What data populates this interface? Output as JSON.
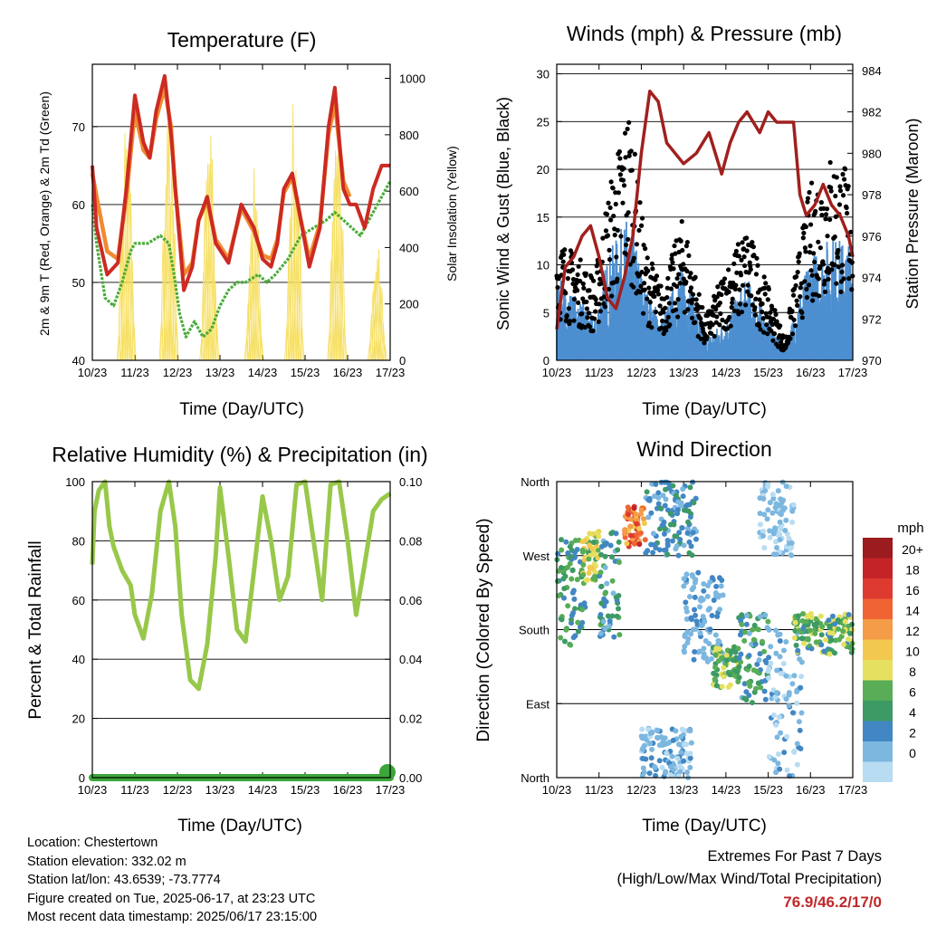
{
  "colors": {
    "temp_2m": "#cc2a22",
    "temp_9m": "#f08a30",
    "dewpoint": "#4aab3a",
    "solar": "#f6df60",
    "wind": "#4d8fd0",
    "gust": "#000000",
    "pressure": "#a0201e",
    "rh": "#98c84a",
    "precip": "#3ca63a",
    "grid": "#000000",
    "extreme_values": "#c0282a"
  },
  "chart_data": [
    {
      "id": "temperature",
      "type": "line",
      "title": "Temperature (F)",
      "xlabel": "Time (Day/UTC)",
      "ylabel": "2m & 9m T (Red, Orange) & 2m Td (Green)",
      "y2label": "Solar Insolation (Yellow)",
      "xlim": [
        10,
        17
      ],
      "ylim": [
        40,
        78
      ],
      "y2lim": [
        0,
        1050
      ],
      "xticks": [
        "10/23",
        "11/23",
        "12/23",
        "13/23",
        "14/23",
        "15/23",
        "16/23",
        "17/23"
      ],
      "yticks": [
        40,
        50,
        60,
        70
      ],
      "y2ticks": [
        0,
        200,
        400,
        600,
        800,
        1000
      ],
      "grid": true,
      "series": [
        {
          "key": "temp_2m",
          "x": [
            10,
            10.1,
            10.35,
            10.6,
            10.8,
            11,
            11.2,
            11.35,
            11.5,
            11.7,
            11.85,
            11.95,
            12.15,
            12.35,
            12.5,
            12.7,
            12.9,
            13.2,
            13.5,
            13.8,
            14.0,
            14.2,
            14.35,
            14.5,
            14.7,
            14.9,
            15.1,
            15.35,
            15.55,
            15.7,
            15.9,
            16.05,
            16.2,
            16.4,
            16.6,
            16.8,
            17.0
          ],
          "y": [
            65,
            57,
            51,
            52.5,
            62,
            74,
            68,
            66,
            72,
            76.5,
            69,
            62,
            49,
            52,
            58,
            61,
            55,
            52.5,
            60,
            57,
            53,
            52,
            55,
            62,
            64,
            58,
            52,
            57,
            70,
            75,
            62,
            60,
            60,
            57,
            62,
            65,
            65
          ]
        },
        {
          "key": "temp_9m",
          "x": [
            10,
            10.1,
            10.35,
            10.6,
            10.8,
            11,
            11.2,
            11.35,
            11.5,
            11.7,
            11.85,
            11.95,
            12.15,
            12.35,
            12.5,
            12.7,
            12.9,
            13.2,
            13.5,
            13.8,
            14.0,
            14.2,
            14.35,
            14.5,
            14.7,
            14.9,
            15.1,
            15.35,
            15.55,
            15.7,
            15.9,
            16.05
          ],
          "y": [
            64,
            61,
            54,
            53,
            61,
            72,
            67,
            66,
            71,
            75,
            70,
            62,
            51,
            52.5,
            58,
            60.5,
            55.5,
            53,
            59.5,
            56.5,
            53.5,
            53,
            55.5,
            61.5,
            63.5,
            58,
            53,
            57.5,
            69,
            73,
            63,
            61
          ]
        },
        {
          "key": "dewpoint",
          "x": [
            10,
            10.1,
            10.3,
            10.5,
            10.7,
            10.9,
            11,
            11.3,
            11.6,
            11.8,
            11.95,
            12.05,
            12.2,
            12.4,
            12.6,
            12.8,
            13.0,
            13.2,
            13.4,
            13.6,
            13.9,
            14.1,
            14.3,
            14.6,
            14.9,
            15.2,
            15.5,
            15.7,
            15.9,
            16.1,
            16.3,
            16.5,
            16.8,
            17.0
          ],
          "y": [
            60,
            55,
            48,
            47,
            50,
            54,
            55,
            55,
            56,
            55,
            50,
            46,
            43,
            45,
            43,
            44,
            47,
            49,
            50,
            50,
            51,
            50,
            51,
            53,
            56,
            57,
            58,
            59,
            58,
            57,
            56,
            58,
            61,
            63
          ]
        },
        {
          "key": "solar",
          "peaks": [
            [
              10.8,
              950
            ],
            [
              11.8,
              1000
            ],
            [
              12.75,
              860
            ],
            [
              13.8,
              700
            ],
            [
              14.75,
              980
            ],
            [
              15.75,
              1040
            ],
            [
              16.7,
              420
            ]
          ]
        }
      ]
    },
    {
      "id": "winds",
      "type": "line",
      "title": "Winds (mph) & Pressure (mb)",
      "xlabel": "Time (Day/UTC)",
      "ylabel": "Sonic Wind & Gust (Blue, Black)",
      "y2label": "Station Pressure (Maroon)",
      "xlim": [
        10,
        17
      ],
      "ylim": [
        0,
        31
      ],
      "y2lim": [
        970,
        984.3
      ],
      "xticks": [
        "10/23",
        "11/23",
        "12/23",
        "13/23",
        "14/23",
        "15/23",
        "16/23",
        "17/23"
      ],
      "yticks": [
        0,
        5,
        10,
        15,
        20,
        25,
        30
      ],
      "y2ticks": [
        970,
        972,
        974,
        976,
        978,
        980,
        982,
        984
      ],
      "grid": true,
      "series": [
        {
          "key": "pressure",
          "x": [
            10,
            10.2,
            10.4,
            10.6,
            10.8,
            11,
            11.2,
            11.4,
            11.6,
            11.8,
            12,
            12.2,
            12.4,
            12.6,
            12.8,
            13.0,
            13.3,
            13.6,
            13.9,
            14.1,
            14.3,
            14.5,
            14.8,
            15.0,
            15.2,
            15.4,
            15.6,
            15.75,
            15.9,
            16.1,
            16.3,
            16.5,
            16.7,
            16.9,
            17.0
          ],
          "y": [
            971.5,
            974.5,
            975,
            976,
            976.5,
            975,
            973,
            972.5,
            974,
            976,
            980,
            983,
            982.5,
            980.5,
            980,
            979.5,
            980,
            981,
            979,
            980.5,
            981.5,
            982,
            981,
            982,
            981.5,
            981.5,
            981.5,
            978,
            977,
            977.5,
            978.5,
            977.5,
            977,
            976,
            975
          ]
        },
        {
          "key": "wind",
          "envelope_x": [
            10,
            10.5,
            10.9,
            11.2,
            11.7,
            12.1,
            12.5,
            13.0,
            13.5,
            14.0,
            14.5,
            15.0,
            15.4,
            15.7,
            16.0,
            16.5,
            17.0
          ],
          "envelope_y": [
            8,
            6,
            4,
            10,
            14,
            7,
            4,
            10,
            2,
            4,
            8,
            4,
            1,
            6,
            10,
            12,
            11
          ]
        },
        {
          "key": "gust",
          "envelope_x": [
            10,
            10.5,
            10.9,
            11.2,
            11.7,
            12.1,
            12.5,
            13.0,
            13.5,
            14.0,
            14.5,
            15.0,
            15.4,
            15.7,
            16.0,
            16.5,
            17.0
          ],
          "envelope_y": [
            12,
            10,
            8,
            16,
            25,
            11,
            7,
            14,
            4,
            9,
            13,
            7,
            2,
            10,
            17,
            20,
            18
          ]
        }
      ]
    },
    {
      "id": "humidity",
      "type": "line",
      "title": "Relative Humidity (%) & Precipitation (in)",
      "xlabel": "Time (Day/UTC)",
      "ylabel": "Percent & Total Rainfall",
      "xlim": [
        10,
        17
      ],
      "ylim": [
        0,
        100
      ],
      "y2lim": [
        0,
        0.1
      ],
      "xticks": [
        "10/23",
        "11/23",
        "12/23",
        "13/23",
        "14/23",
        "15/23",
        "16/23",
        "17/23"
      ],
      "yticks": [
        0,
        20,
        40,
        60,
        80,
        100
      ],
      "y2ticks": [
        "0.00",
        "0.02",
        "0.04",
        "0.06",
        "0.08",
        "0.10"
      ],
      "grid": true,
      "series": [
        {
          "key": "rh",
          "x": [
            10,
            10.05,
            10.15,
            10.3,
            10.4,
            10.5,
            10.7,
            10.9,
            11.0,
            11.2,
            11.4,
            11.6,
            11.8,
            11.95,
            12.1,
            12.3,
            12.5,
            12.7,
            12.9,
            13.0,
            13.2,
            13.4,
            13.6,
            13.8,
            14.0,
            14.2,
            14.4,
            14.6,
            14.8,
            15.0,
            15.2,
            15.4,
            15.6,
            15.8,
            16.0,
            16.2,
            16.4,
            16.6,
            16.8,
            17.0
          ],
          "y": [
            72,
            90,
            97,
            100,
            85,
            78,
            70,
            65,
            55,
            47,
            62,
            90,
            100,
            85,
            55,
            33,
            30,
            45,
            75,
            98,
            75,
            50,
            46,
            70,
            95,
            80,
            60,
            68,
            99,
            100,
            80,
            60,
            99,
            100,
            80,
            55,
            72,
            90,
            94,
            96
          ]
        },
        {
          "key": "precip",
          "x": [
            10,
            17
          ],
          "y": [
            0,
            0
          ]
        }
      ]
    },
    {
      "id": "direction",
      "type": "scatter",
      "title": "Wind Direction",
      "xlabel": "Time (Day/UTC)",
      "ylabel": "Direction (Colored By Speed)",
      "xlim": [
        10,
        17
      ],
      "ylim": [
        0,
        360
      ],
      "xticks": [
        "10/23",
        "11/23",
        "12/23",
        "13/23",
        "14/23",
        "15/23",
        "16/23",
        "17/23"
      ],
      "yticks": [
        "North",
        "East",
        "South",
        "West",
        "North"
      ],
      "grid": true,
      "legend": {
        "title": "mph",
        "labels": [
          "20+",
          "18",
          "16",
          "14",
          "12",
          "10",
          "8",
          "6",
          "4",
          "2",
          "0"
        ],
        "colors": [
          "#9b1b1e",
          "#c42428",
          "#de3a2f",
          "#f06433",
          "#f49c47",
          "#f2c94e",
          "#e6e060",
          "#58ad56",
          "#3d9a64",
          "#4287c4",
          "#7cb7e0",
          "#b8dcf2"
        ]
      },
      "clusters": [
        {
          "x": [
            10,
            10.7
          ],
          "y": [
            160,
            290
          ],
          "speed": [
            3,
            8
          ]
        },
        {
          "x": [
            10.6,
            11.0
          ],
          "y": [
            240,
            300
          ],
          "speed": [
            6,
            13
          ]
        },
        {
          "x": [
            11.0,
            11.5
          ],
          "y": [
            170,
            300
          ],
          "speed": [
            2,
            8
          ]
        },
        {
          "x": [
            11.6,
            12.1
          ],
          "y": [
            280,
            330
          ],
          "speed": [
            12,
            20
          ]
        },
        {
          "x": [
            12.1,
            13.3
          ],
          "y": [
            270,
            360
          ],
          "speed": [
            2,
            6
          ]
        },
        {
          "x": [
            12.0,
            13.2
          ],
          "y": [
            0,
            60
          ],
          "speed": [
            0,
            4
          ]
        },
        {
          "x": [
            13.0,
            14.0
          ],
          "y": [
            140,
            250
          ],
          "speed": [
            1,
            4
          ]
        },
        {
          "x": [
            13.7,
            14.3
          ],
          "y": [
            110,
            160
          ],
          "speed": [
            5,
            10
          ]
        },
        {
          "x": [
            14.3,
            15.0
          ],
          "y": [
            90,
            200
          ],
          "speed": [
            2,
            9
          ]
        },
        {
          "x": [
            14.8,
            15.6
          ],
          "y": [
            270,
            360
          ],
          "speed": [
            0,
            3
          ]
        },
        {
          "x": [
            15.0,
            15.8
          ],
          "y": [
            0,
            180
          ],
          "speed": [
            0,
            4
          ]
        },
        {
          "x": [
            15.6,
            17.0
          ],
          "y": [
            150,
            200
          ],
          "speed": [
            4,
            11
          ]
        }
      ]
    }
  ],
  "station": {
    "location": "Location: Chestertown",
    "elevation": "Station elevation: 332.02 m",
    "latlon": "Station lat/lon: 43.6539; -73.7774",
    "created": "Figure created on Tue, 2025-06-17, at 23:23 UTC",
    "latest": "Most recent data timestamp: 2025/06/17 23:15:00"
  },
  "extremes": {
    "heading": "Extremes For Past 7 Days",
    "subheading": "(High/Low/Max Wind/Total Precipitation)",
    "values": "76.9/46.2/17/0"
  }
}
